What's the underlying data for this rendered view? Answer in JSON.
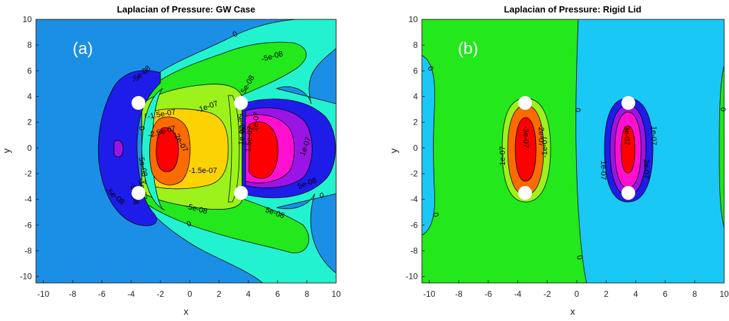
{
  "colors": {
    "cyan": "#19c8f5",
    "blue": "#1b8fe6",
    "aqua": "#22f2cf",
    "green": "#22e81c",
    "lime": "#9cf21a",
    "yellow": "#fcd205",
    "orange": "#fa6b00",
    "red": "#ff0000",
    "darkblue": "#1d1ce8",
    "purple": "#9a14e6",
    "magenta": "#ff0fd0",
    "white": "#ffffff"
  },
  "chart_data": [
    {
      "type": "contour",
      "title": "Laplacian of Pressure: GW Case",
      "panel_label": "(a)",
      "xlabel": "x",
      "ylabel": "y",
      "xlim": [
        -10.5,
        10
      ],
      "ylim": [
        -10.5,
        10
      ],
      "xticks": [
        -10,
        -8,
        -6,
        -4,
        -2,
        0,
        2,
        4,
        6,
        8,
        10
      ],
      "yticks": [
        10,
        8,
        6,
        4,
        2,
        0,
        -2,
        -4,
        -6,
        -8,
        -10
      ],
      "contour_levels": [
        "0",
        "-5e-08",
        "-1e-07",
        "-1.5e-07",
        "-2e-07",
        "-2.5e-07",
        "5e-08",
        "1e-07",
        "2e-07"
      ],
      "contour_labels": [
        "0",
        "-5e-08",
        "-5e-08",
        "-1e-07",
        "-1.5e-07",
        "-2.5e-07",
        "-2e-07",
        "-1.5e-07",
        "-5e-08",
        "0",
        "-5e-08",
        "5e-08",
        "5e-08",
        "-1e-07",
        "5e-08",
        "1e-07",
        "1.5e-07",
        "2e-07",
        "1e-07",
        "5e-08",
        "0",
        "-5e-08",
        "0",
        "5e-08"
      ],
      "markers": [
        {
          "x": -3.5,
          "y": 3.5
        },
        {
          "x": -3.5,
          "y": -3.5
        },
        {
          "x": 3.5,
          "y": 3.5
        },
        {
          "x": 3.5,
          "y": -3.5
        }
      ]
    },
    {
      "type": "contour",
      "title": "Laplacian of Pressure: Rigid Lid",
      "panel_label": "(b)",
      "xlabel": "x",
      "ylabel": "y",
      "xlim": [
        -10.5,
        10
      ],
      "ylim": [
        -10.5,
        10
      ],
      "xticks": [
        -10,
        -8,
        -6,
        -4,
        -2,
        0,
        2,
        4,
        6,
        8,
        10
      ],
      "yticks": [
        10,
        8,
        6,
        4,
        2,
        0,
        -2,
        -4,
        -6,
        -8,
        -10
      ],
      "contour_levels": [
        "0",
        "-1e-07",
        "-2e-07",
        "-3e-07",
        "1e-07",
        "2e-07",
        "3e-07"
      ],
      "contour_labels": [
        "0",
        "0",
        "0",
        "0",
        "0",
        "-1e-07",
        "-2e-07",
        "-3e-07",
        "-1e-07",
        "3e-07",
        "1e-07",
        "2e-07",
        "1e-07"
      ],
      "markers": [
        {
          "x": -3.5,
          "y": 3.5
        },
        {
          "x": -3.5,
          "y": -3.5
        },
        {
          "x": 3.5,
          "y": 3.5
        },
        {
          "x": 3.5,
          "y": -3.5
        }
      ]
    }
  ]
}
